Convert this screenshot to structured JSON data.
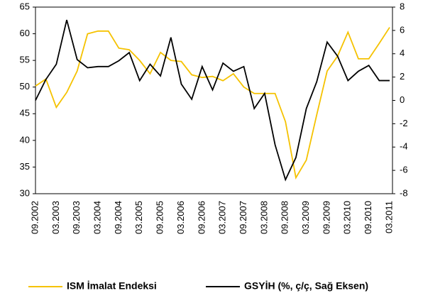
{
  "chart_data": {
    "type": "line",
    "categories": [
      "09.2002",
      null,
      "03.2003",
      null,
      "09.2003",
      null,
      "03.2004",
      null,
      "09.2004",
      null,
      "03.2005",
      null,
      "09.2005",
      null,
      "03.2006",
      null,
      "09.2006",
      null,
      "03.2007",
      null,
      "09.2007",
      null,
      "03.2008",
      null,
      "09.2008",
      null,
      "03.2009",
      null,
      "09.2009",
      null,
      "03.2010",
      null,
      "09.2010",
      null,
      "03.2011"
    ],
    "series": [
      {
        "name": "ISM İmalat Endeksi",
        "color": "#f5c200",
        "values": [
          50.2,
          51.5,
          46.2,
          49,
          53,
          60,
          60.5,
          60.5,
          57.3,
          57,
          55,
          52.5,
          56.5,
          55,
          54.8,
          52.3,
          51.8,
          52,
          51.2,
          52.5,
          50,
          48.8,
          48.8,
          48.8,
          43.5,
          33,
          36.3,
          44.8,
          53,
          55.8,
          60.3,
          55.3,
          55.3,
          58.2,
          61.2
        ]
      },
      {
        "name": "GSYİH (%, ç/ç, Sağ Eksen)",
        "color": "#000000",
        "axis": "y2",
        "values": [
          0,
          1.8,
          3.1,
          6.9,
          3.5,
          2.8,
          2.9,
          2.9,
          3.4,
          4.1,
          1.7,
          3.1,
          2.1,
          5.4,
          1.4,
          0.1,
          2.9,
          0.9,
          3.2,
          2.5,
          2.9,
          -0.7,
          0.6,
          -3.8,
          -6.8,
          -4.9,
          -0.7,
          1.6,
          5,
          3.8,
          1.7,
          2.5,
          3,
          1.7,
          1.7
        ]
      }
    ],
    "ylim": [
      30,
      65
    ],
    "yticks": [
      30,
      35,
      40,
      45,
      50,
      55,
      60,
      65
    ],
    "y2lim": [
      -8,
      8
    ],
    "y2ticks": [
      -8,
      -6,
      -4,
      -2,
      0,
      2,
      4,
      6,
      8
    ],
    "grid": false,
    "legend": "bottom"
  }
}
